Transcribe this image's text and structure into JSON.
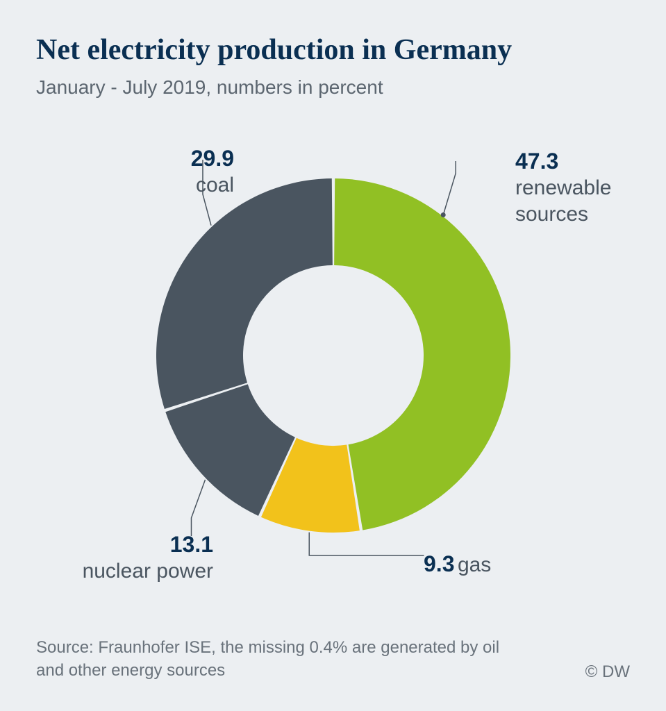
{
  "title": "Net electricity production in Germany",
  "subtitle": "January - July 2019, numbers in percent",
  "source_text": "Source: Fraunhofer ISE, the missing 0.4% are generated by oil and other energy sources",
  "copyright": "© DW",
  "chart": {
    "type": "donut",
    "background_color": "#eceff2",
    "title_color": "#0a2f52",
    "subtitle_color": "#5c6670",
    "value_fontsize": 32,
    "label_fontsize": 30,
    "title_fontsize": 42,
    "subtitle_fontsize": 28,
    "outer_radius": 255,
    "inner_radius": 130,
    "gap_color": "#eceff2",
    "gap_width": 3,
    "slices": [
      {
        "key": "renewable",
        "label": "renewable sources",
        "value": 47.3,
        "color": "#91c024"
      },
      {
        "key": "gas",
        "label": "gas",
        "value": 9.3,
        "color": "#f2c21b"
      },
      {
        "key": "nuclear",
        "label": "nuclear power",
        "value": 13.1,
        "color": "#4a5560"
      },
      {
        "key": "coal",
        "label": "coal",
        "value": 29.9,
        "color": "#4a5560"
      }
    ]
  }
}
